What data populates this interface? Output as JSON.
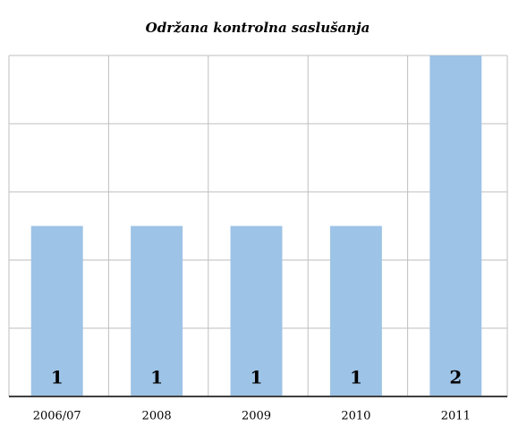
{
  "chart_data": {
    "type": "bar",
    "title": "Održana kontrolna saslušanja",
    "categories": [
      "2006/07",
      "2008",
      "2009",
      "2010",
      "2011"
    ],
    "values": [
      1,
      1,
      1,
      1,
      2
    ],
    "color": "#9dc3e6",
    "ylim": [
      0,
      2
    ],
    "yticks": [
      0,
      0.4,
      0.8,
      1.2,
      1.6,
      2
    ],
    "grid": true
  }
}
